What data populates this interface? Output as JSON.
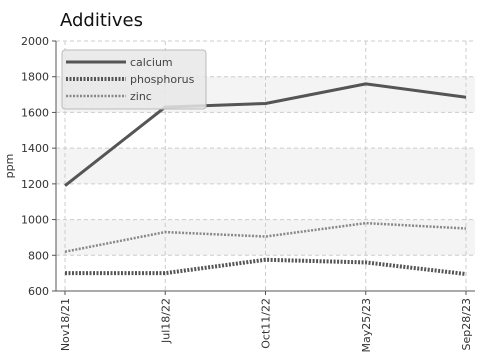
{
  "chart_data": {
    "type": "line",
    "title": "Additives",
    "xlabel": "",
    "ylabel": "ppm",
    "categories": [
      "Nov18/21",
      "Jul18/22",
      "Oct11/22",
      "May25/23",
      "Sep28/23"
    ],
    "ylim": [
      600,
      2000
    ],
    "yticks": [
      600,
      800,
      1000,
      1200,
      1400,
      1600,
      1800,
      2000
    ],
    "grid": true,
    "legend_position": "top-left",
    "series": [
      {
        "name": "calcium",
        "values": [
          1190,
          1630,
          1650,
          1760,
          1685
        ],
        "color": "#555555",
        "style": "solid"
      },
      {
        "name": "phosphorus",
        "values": [
          700,
          700,
          775,
          760,
          695
        ],
        "color": "#555555",
        "style": "dotted"
      },
      {
        "name": "zinc",
        "values": [
          820,
          930,
          905,
          980,
          950
        ],
        "color": "#888888",
        "style": "dotted-thin"
      }
    ]
  }
}
